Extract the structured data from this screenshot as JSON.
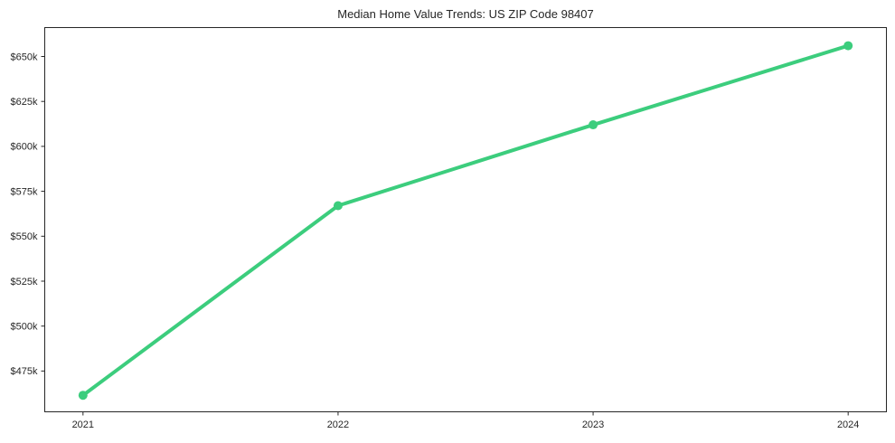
{
  "title": "Median Home Value Trends: US ZIP Code 98407",
  "chart_data": {
    "type": "line",
    "title": "Median Home Value Trends: US ZIP Code 98407",
    "xlabel": "",
    "ylabel": "",
    "x": [
      2021,
      2022,
      2023,
      2024
    ],
    "x_tick_labels": [
      "2021",
      "2022",
      "2023",
      "2024"
    ],
    "series": [
      {
        "name": "Median Home Value",
        "values": [
          461500,
          567000,
          612000,
          656000
        ]
      }
    ],
    "y_ticks": [
      475000,
      500000,
      525000,
      550000,
      575000,
      600000,
      625000,
      650000
    ],
    "y_tick_labels": [
      "$475k",
      "$500k",
      "$525k",
      "$550k",
      "$575k",
      "$600k",
      "$625k",
      "$650k"
    ],
    "xlim": [
      2020.85,
      2024.15
    ],
    "ylim": [
      452300,
      666100
    ],
    "grid": false,
    "legend": "none",
    "line_color": "#3ccd7d",
    "axis_color": "#262626",
    "background_color": "#ffffff",
    "line_width": 4,
    "marker": "circle",
    "marker_radius": 5,
    "tick_font_size": 11,
    "title_font_size": 13
  }
}
